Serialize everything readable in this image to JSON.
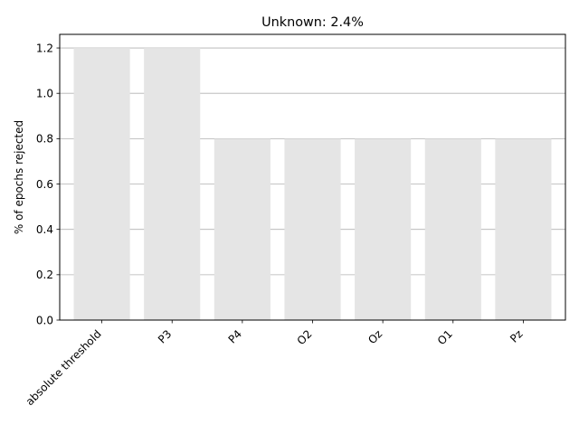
{
  "chart_data": {
    "type": "bar",
    "title": "Unknown: 2.4%",
    "xlabel": "",
    "ylabel": "% of epochs rejected",
    "categories": [
      "absolute threshold",
      "P3",
      "P4",
      "O2",
      "Oz",
      "O1",
      "Pz"
    ],
    "values": [
      1.2,
      1.2,
      0.8,
      0.8,
      0.8,
      0.8,
      0.8
    ],
    "ylim": [
      0,
      1.26
    ],
    "yticks": [
      0.0,
      0.2,
      0.4,
      0.6,
      0.8,
      1.0,
      1.2
    ],
    "ytick_labels": [
      "0.0",
      "0.2",
      "0.4",
      "0.6",
      "0.8",
      "1.0",
      "1.2"
    ],
    "grid": "y",
    "bar_color": "#e5e5e5",
    "grid_color": "#b0b0b0",
    "axis_color": "#000000"
  }
}
